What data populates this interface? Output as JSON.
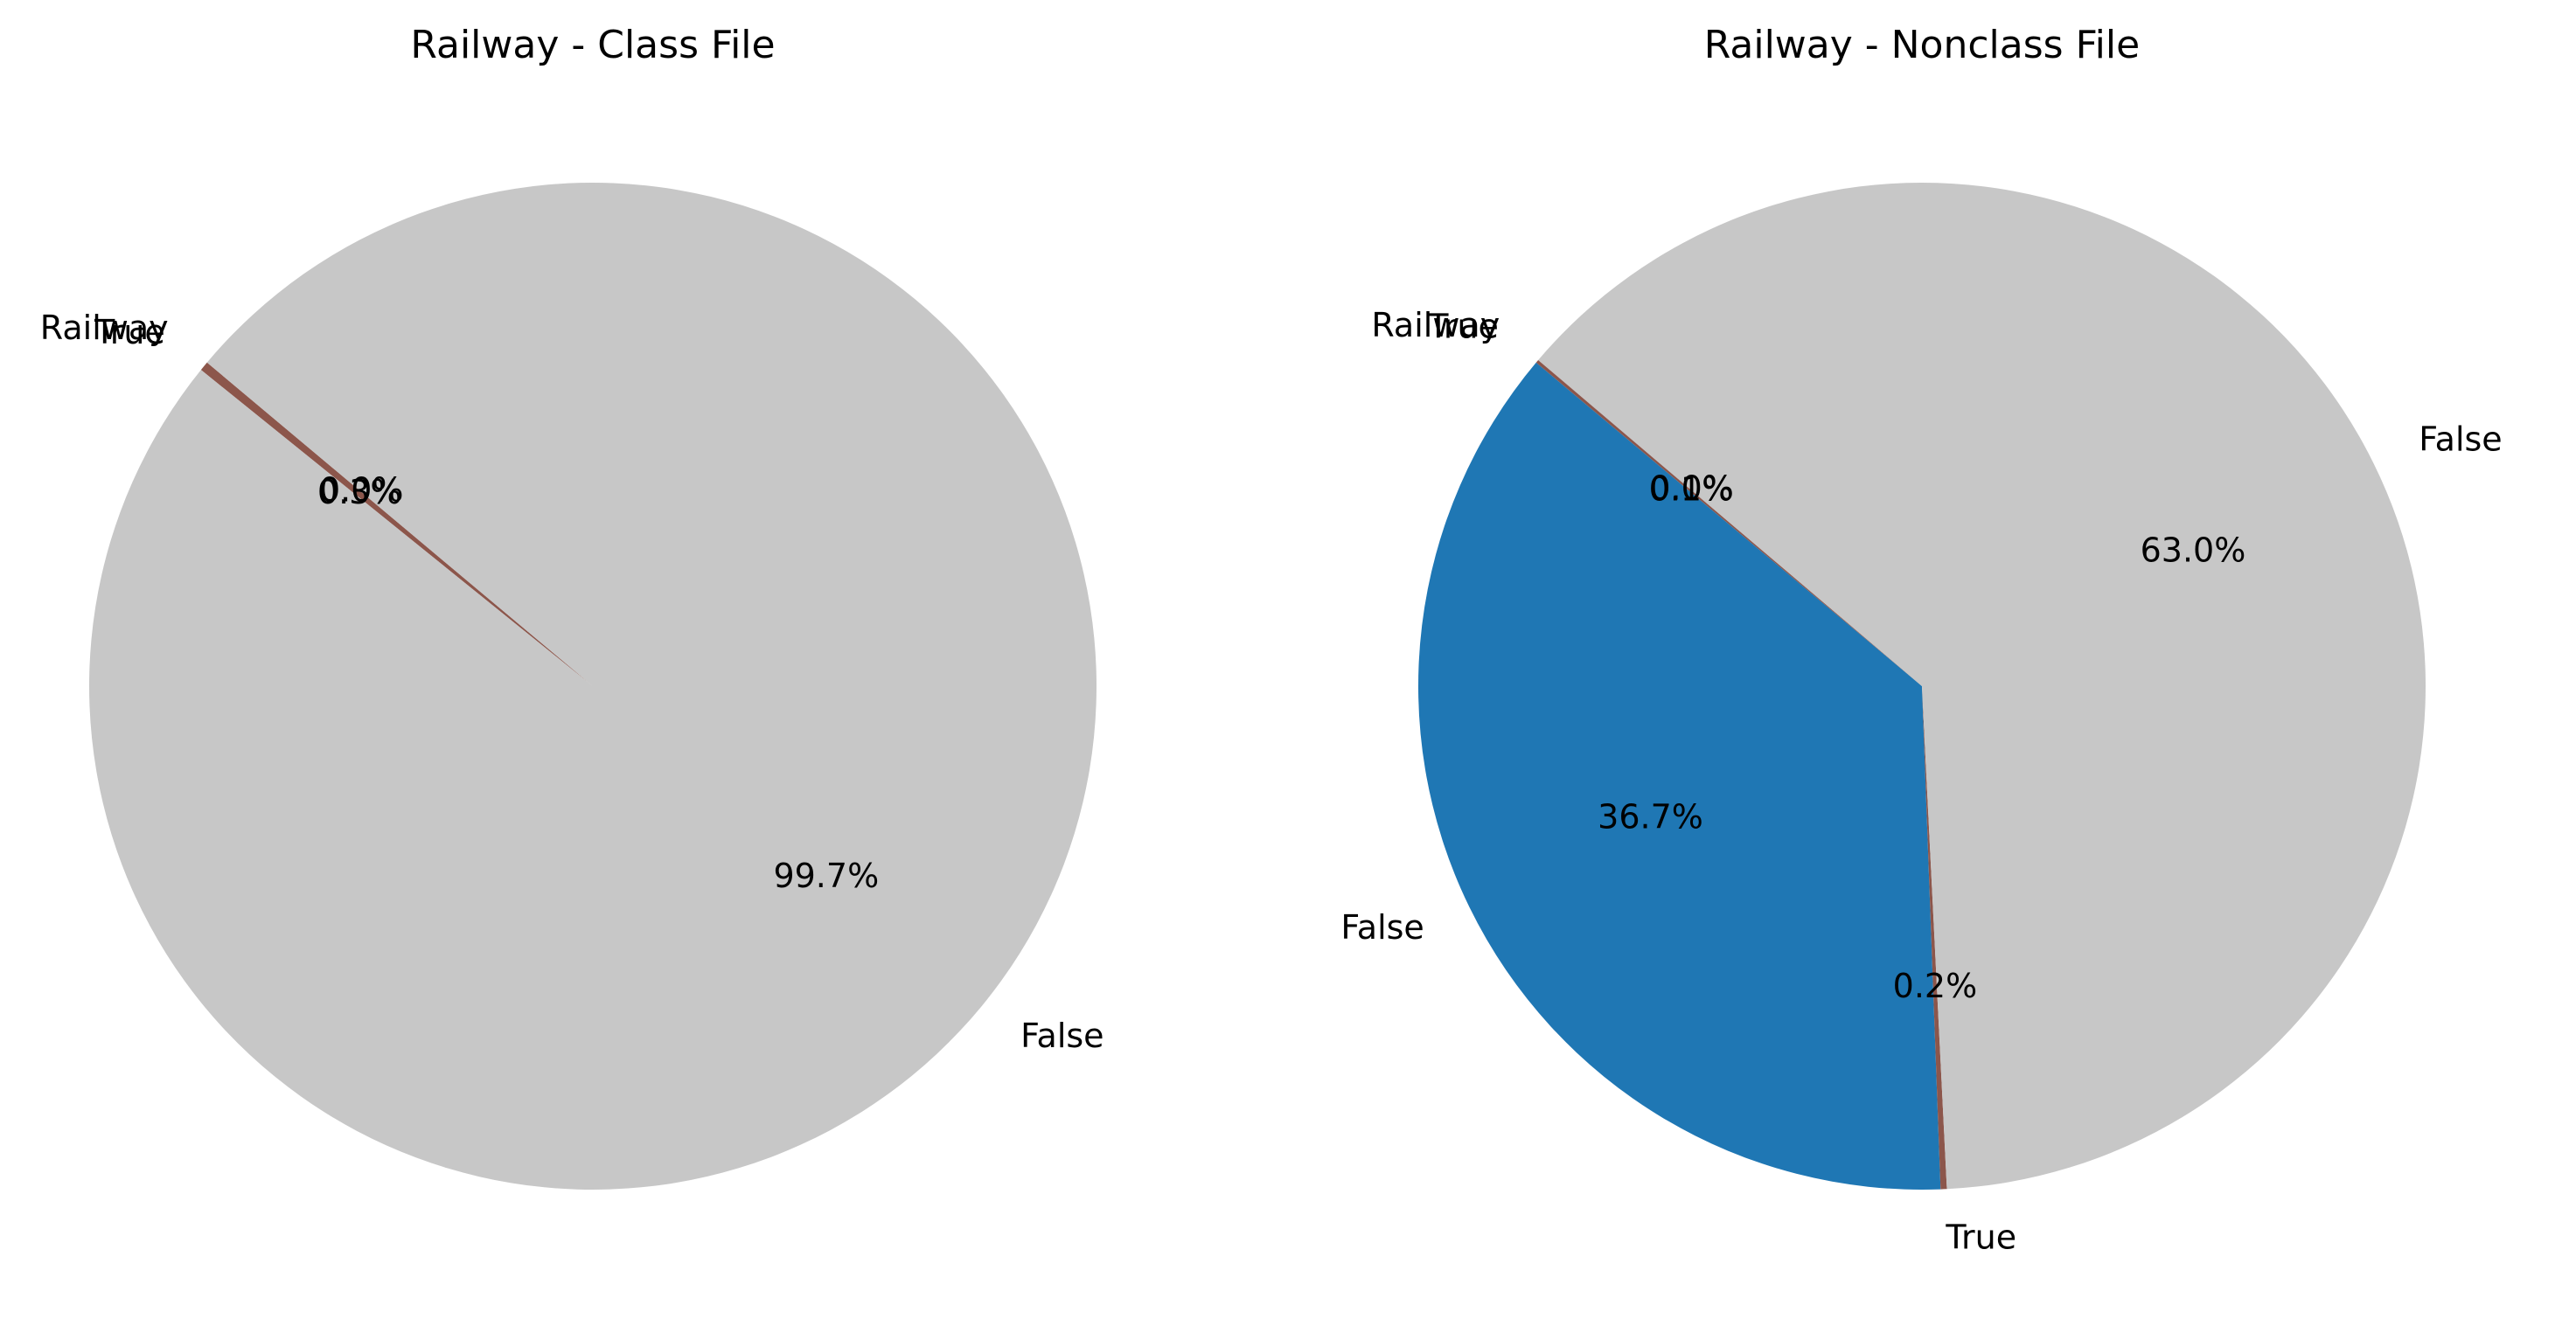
{
  "chart_data": [
    {
      "type": "pie",
      "title": "Railway - Class File",
      "slices": [
        {
          "label": "Railway",
          "value": 0.0,
          "pct": "0.0%",
          "color": "#98df8a"
        },
        {
          "label": "True",
          "value": 0.3,
          "pct": "0.3%",
          "color": "#8c564b"
        },
        {
          "label": "False",
          "value": 99.7,
          "pct": "99.7%",
          "color": "#c7c7c7"
        }
      ]
    },
    {
      "type": "pie",
      "title": "Railway - Nonclass File",
      "slices": [
        {
          "label": "False",
          "value": 36.7,
          "pct": "36.7%",
          "color": "#1f77b4"
        },
        {
          "label": "True",
          "value": 0.2,
          "pct": "0.2%",
          "color": "#8c564b"
        },
        {
          "label": "False",
          "value": 63.0,
          "pct": "63.0%",
          "color": "#c7c7c7"
        },
        {
          "label": "Railway",
          "value": 0.0,
          "pct": "0.0%",
          "color": "#98df8a"
        },
        {
          "label": "True",
          "value": 0.1,
          "pct": "0.1%",
          "color": "#8c564b"
        }
      ]
    }
  ]
}
